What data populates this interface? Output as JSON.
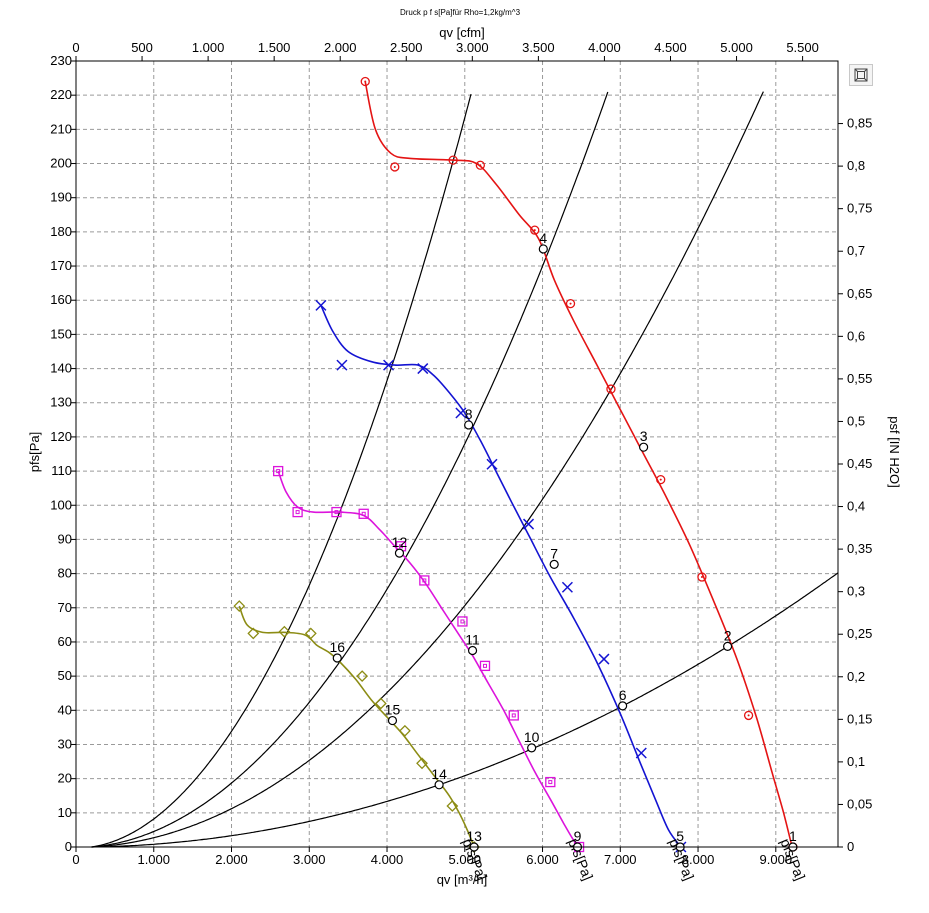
{
  "chart_data": {
    "type": "line",
    "title": "Druck p f s[Pa]für Rho=1,2kg/m^3",
    "xlabel": "qv [m³/h]",
    "x2label": "qv [cfm]",
    "ylabel": "pfs[Pa]",
    "y2label": "psf [IN H2O]",
    "xlim": [
      0,
      9800
    ],
    "ylim": [
      0,
      230
    ],
    "x2lim": [
      0,
      5768
    ],
    "y2lim": [
      0,
      0.9235
    ],
    "grid": true,
    "x_ticks": [
      0,
      1000,
      2000,
      3000,
      4000,
      5000,
      6000,
      7000,
      8000,
      9000
    ],
    "x_tick_labels": [
      "0",
      "1.000",
      "2.000",
      "3.000",
      "4.000",
      "5.000",
      "6.000",
      "7.000",
      "8.000",
      "9.000"
    ],
    "y_ticks": [
      0,
      10,
      20,
      30,
      40,
      50,
      60,
      70,
      80,
      90,
      100,
      110,
      120,
      130,
      140,
      150,
      160,
      170,
      180,
      190,
      200,
      210,
      220,
      230
    ],
    "y_tick_labels": [
      "0",
      "10",
      "20",
      "30",
      "40",
      "50",
      "60",
      "70",
      "80",
      "90",
      "100",
      "110",
      "120",
      "130",
      "140",
      "150",
      "160",
      "170",
      "180",
      "190",
      "200",
      "210",
      "220",
      "230"
    ],
    "x2_ticks": [
      0,
      500,
      1000,
      1500,
      2000,
      2500,
      3000,
      3500,
      4000,
      4500,
      5000,
      5500
    ],
    "x2_tick_labels": [
      "0",
      "500",
      "1.000",
      "1.500",
      "2.000",
      "2.500",
      "3.000",
      "3.500",
      "4.000",
      "4.500",
      "5.000",
      "5.500"
    ],
    "y2_ticks": [
      0,
      0.05,
      0.1,
      0.15,
      0.2,
      0.25,
      0.3,
      0.35,
      0.4,
      0.45,
      0.5,
      0.55,
      0.6,
      0.65,
      0.7,
      0.75,
      0.8,
      0.85
    ],
    "y2_tick_labels": [
      "0",
      "0,05",
      "0,1",
      "0,15",
      "0,2",
      "0,25",
      "0,3",
      "0,35",
      "0,4",
      "0,45",
      "0,5",
      "0,55",
      "0,6",
      "0,65",
      "0,7",
      "0,75",
      "0,8",
      "0,85"
    ],
    "series": [
      {
        "name": "pfs[Pa]",
        "color": "#e41414",
        "marker": "circle",
        "curve": [
          [
            3720,
            224
          ],
          [
            3850,
            210
          ],
          [
            4050,
            203
          ],
          [
            4300,
            201.5
          ],
          [
            4850,
            201
          ],
          [
            5150,
            200
          ],
          [
            5400,
            194
          ],
          [
            5700,
            185
          ],
          [
            5950,
            178
          ],
          [
            6150,
            166
          ],
          [
            6400,
            154
          ],
          [
            6700,
            141
          ],
          [
            7000,
            128
          ],
          [
            7300,
            115
          ],
          [
            7600,
            102
          ],
          [
            7900,
            88
          ],
          [
            8200,
            72
          ],
          [
            8500,
            55
          ],
          [
            8750,
            38
          ],
          [
            8950,
            22
          ],
          [
            9100,
            10
          ],
          [
            9210,
            0
          ]
        ],
        "points": [
          [
            3720,
            224
          ],
          [
            4100,
            199
          ],
          [
            4850,
            201
          ],
          [
            5200,
            199.5
          ],
          [
            5900,
            180.5
          ],
          [
            6360,
            159
          ],
          [
            6880,
            134
          ],
          [
            7520,
            107.5
          ],
          [
            8050,
            79
          ],
          [
            8650,
            38.5
          ],
          [
            9220,
            0
          ]
        ],
        "label": "pfs[Pa]"
      },
      {
        "name": "pfs[Pa]",
        "color": "#1414d2",
        "marker": "x",
        "curve": [
          [
            3150,
            158.5
          ],
          [
            3300,
            151
          ],
          [
            3500,
            145
          ],
          [
            3800,
            142
          ],
          [
            4100,
            141
          ],
          [
            4400,
            141
          ],
          [
            4600,
            138
          ],
          [
            4800,
            133
          ],
          [
            5000,
            127
          ],
          [
            5200,
            119
          ],
          [
            5400,
            110
          ],
          [
            5600,
            101
          ],
          [
            5850,
            90
          ],
          [
            6100,
            79
          ],
          [
            6400,
            67
          ],
          [
            6700,
            54
          ],
          [
            7000,
            39
          ],
          [
            7250,
            25
          ],
          [
            7450,
            14
          ],
          [
            7620,
            5
          ],
          [
            7780,
            0
          ]
        ],
        "points": [
          [
            3150,
            158.5
          ],
          [
            3420,
            141
          ],
          [
            4020,
            141
          ],
          [
            4460,
            140
          ],
          [
            4950,
            127
          ],
          [
            5350,
            112
          ],
          [
            5820,
            94.5
          ],
          [
            6320,
            76
          ],
          [
            6790,
            55
          ],
          [
            7270,
            27.5
          ],
          [
            7780,
            0
          ]
        ],
        "label": "pfs[Pa]"
      },
      {
        "name": "pfs[Pa]",
        "color": "#dc14dc",
        "marker": "square",
        "curve": [
          [
            2600,
            110
          ],
          [
            2700,
            104
          ],
          [
            2850,
            99.5
          ],
          [
            3050,
            98
          ],
          [
            3400,
            98
          ],
          [
            3700,
            97
          ],
          [
            3900,
            93
          ],
          [
            4100,
            88
          ],
          [
            4300,
            83
          ],
          [
            4500,
            77
          ],
          [
            4700,
            70
          ],
          [
            4900,
            63
          ],
          [
            5100,
            56
          ],
          [
            5300,
            48
          ],
          [
            5500,
            40
          ],
          [
            5700,
            31
          ],
          [
            5900,
            22
          ],
          [
            6100,
            14
          ],
          [
            6270,
            7
          ],
          [
            6400,
            2
          ],
          [
            6480,
            0
          ]
        ],
        "points": [
          [
            2600,
            110
          ],
          [
            2850,
            98
          ],
          [
            3350,
            98
          ],
          [
            3700,
            97.5
          ],
          [
            4180,
            88
          ],
          [
            4480,
            78
          ],
          [
            4970,
            66
          ],
          [
            5260,
            53
          ],
          [
            5630,
            38.5
          ],
          [
            6100,
            19
          ],
          [
            6470,
            0
          ]
        ],
        "label": "pfs[Pa]"
      },
      {
        "name": "pfs[Pa]",
        "color": "#8c8c14",
        "marker": "diamond",
        "curve": [
          [
            2100,
            70.5
          ],
          [
            2200,
            65
          ],
          [
            2400,
            62.8
          ],
          [
            2700,
            62.8
          ],
          [
            2950,
            62
          ],
          [
            3100,
            59
          ],
          [
            3250,
            57
          ],
          [
            3400,
            54
          ],
          [
            3600,
            49
          ],
          [
            3800,
            43
          ],
          [
            4000,
            38
          ],
          [
            4200,
            33
          ],
          [
            4400,
            27
          ],
          [
            4600,
            21
          ],
          [
            4800,
            15
          ],
          [
            4950,
            9
          ],
          [
            5050,
            4
          ],
          [
            5120,
            0
          ]
        ],
        "points": [
          [
            2100,
            70.5
          ],
          [
            2280,
            62.5
          ],
          [
            2680,
            63
          ],
          [
            3020,
            62.5
          ],
          [
            3680,
            50
          ],
          [
            3920,
            42
          ],
          [
            4230,
            34
          ],
          [
            4450,
            24.5
          ],
          [
            4840,
            12
          ],
          [
            5120,
            0
          ]
        ],
        "label": "pfs[Pa]"
      }
    ],
    "system_curves": [
      {
        "k": 8.55e-06
      },
      {
        "k": 4.726e-06
      },
      {
        "k": 2.83e-06
      },
      {
        "k": 8.357e-07
      }
    ],
    "operating_points": [
      {
        "label": "1",
        "x": 9220,
        "y": 0
      },
      {
        "label": "2",
        "x": 8380,
        "y": 58.7
      },
      {
        "label": "3",
        "x": 7300,
        "y": 117
      },
      {
        "label": "4",
        "x": 6010,
        "y": 175
      },
      {
        "label": "5",
        "x": 7770,
        "y": 0
      },
      {
        "label": "6",
        "x": 7030,
        "y": 41.3
      },
      {
        "label": "7",
        "x": 6150,
        "y": 82.7
      },
      {
        "label": "8",
        "x": 5050,
        "y": 123.5
      },
      {
        "label": "9",
        "x": 6450,
        "y": 0
      },
      {
        "label": "10",
        "x": 5860,
        "y": 29
      },
      {
        "label": "11",
        "x": 5100,
        "y": 57.5
      },
      {
        "label": "12",
        "x": 4160,
        "y": 86
      },
      {
        "label": "13",
        "x": 5120,
        "y": 0
      },
      {
        "label": "14",
        "x": 4670,
        "y": 18.2
      },
      {
        "label": "15",
        "x": 4070,
        "y": 37
      },
      {
        "label": "16",
        "x": 3360,
        "y": 55.3
      }
    ]
  }
}
